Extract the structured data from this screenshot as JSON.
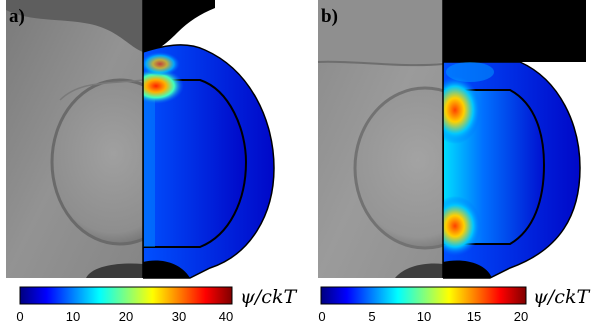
{
  "panels": [
    {
      "label": "a)",
      "colorbar": {
        "ticks": [
          "0",
          "10",
          "20",
          "30",
          "40"
        ],
        "unit_label": "ψ/ckT"
      }
    },
    {
      "label": "b)",
      "colorbar": {
        "ticks": [
          "0",
          "5",
          "10",
          "15",
          "20"
        ],
        "unit_label": "ψ/ckT"
      }
    }
  ],
  "colors": {
    "jet": [
      "#00007f",
      "#0000ff",
      "#007fff",
      "#00ffff",
      "#7fff7f",
      "#ffff00",
      "#ff7f00",
      "#ff0000",
      "#7f0000"
    ],
    "photo_gray": "#8c8c8c",
    "outline": "#000000"
  }
}
